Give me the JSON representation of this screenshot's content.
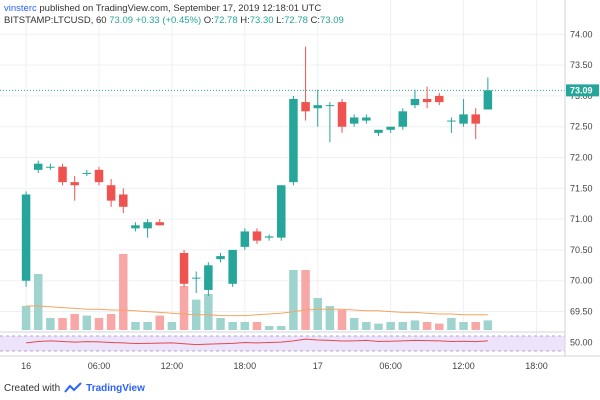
{
  "header": {
    "username": "vinsterc",
    "published_text": "published on TradingView.com, September 17, 2019 12:18:01 UTC",
    "symbol_label": "BITSTAMP:LTCUSD, 60",
    "last_value": "73.09",
    "change_text": "+0.33 (+0.45%)",
    "open_label": "O:",
    "open_value": "72.78",
    "high_label": "H:",
    "high_value": "73.30",
    "low_label": "L:",
    "low_value": "72.78",
    "close_label": "C:",
    "close_value": "73.09"
  },
  "footer": {
    "created_with": "Created with",
    "logo_text": "TradingView"
  },
  "colors": {
    "up": "#26a69a",
    "down": "#ef5350",
    "up_volume": "#9fd4ce",
    "down_volume": "#f7a8a6",
    "rsi_line": "#e24b4b",
    "rsi_band": "#ede3fb",
    "volume_ma": "#f4a460",
    "price_line": "#26a69a"
  },
  "chart_data": {
    "type": "candlestick",
    "last_price_label": "73.09",
    "price_ticks": [
      "74.00",
      "73.50",
      "73.00",
      "72.50",
      "72.00",
      "71.50",
      "71.00",
      "70.50",
      "70.00",
      "69.50"
    ],
    "price_ylim": [
      69.2,
      74.2
    ],
    "x_ticks": [
      {
        "label": "16",
        "index": 0
      },
      {
        "label": "06:00",
        "index": 6
      },
      {
        "label": "12:00",
        "index": 12
      },
      {
        "label": "18:00",
        "index": 18
      },
      {
        "label": "17",
        "index": 24
      },
      {
        "label": "06:00",
        "index": 30
      },
      {
        "label": "12:00",
        "index": 36
      },
      {
        "label": "18:00",
        "index": 42
      }
    ],
    "x_total_slots": 46,
    "candles": [
      {
        "o": 70.0,
        "h": 71.45,
        "l": 69.9,
        "c": 71.4
      },
      {
        "o": 71.8,
        "h": 71.95,
        "l": 71.75,
        "c": 71.9
      },
      {
        "o": 71.85,
        "h": 71.9,
        "l": 71.8,
        "c": 71.85
      },
      {
        "o": 71.85,
        "h": 71.9,
        "l": 71.55,
        "c": 71.6
      },
      {
        "o": 71.6,
        "h": 71.7,
        "l": 71.3,
        "c": 71.55
      },
      {
        "o": 71.75,
        "h": 71.8,
        "l": 71.7,
        "c": 71.75
      },
      {
        "o": 71.8,
        "h": 71.85,
        "l": 71.55,
        "c": 71.6
      },
      {
        "o": 71.55,
        "h": 71.65,
        "l": 71.2,
        "c": 71.3
      },
      {
        "o": 71.4,
        "h": 71.5,
        "l": 71.1,
        "c": 71.2
      },
      {
        "o": 70.85,
        "h": 70.95,
        "l": 70.8,
        "c": 70.9
      },
      {
        "o": 70.85,
        "h": 71.0,
        "l": 70.7,
        "c": 70.95
      },
      {
        "o": 70.95,
        "h": 71.0,
        "l": 70.9,
        "c": 70.9
      },
      null,
      {
        "o": 70.45,
        "h": 70.5,
        "l": 69.9,
        "c": 69.95
      },
      {
        "o": 70.05,
        "h": 70.15,
        "l": 69.8,
        "c": 70.05
      },
      {
        "o": 69.85,
        "h": 70.3,
        "l": 69.75,
        "c": 70.25
      },
      {
        "o": 70.35,
        "h": 70.45,
        "l": 70.3,
        "c": 70.4
      },
      {
        "o": 69.95,
        "h": 70.5,
        "l": 69.9,
        "c": 70.5
      },
      {
        "o": 70.55,
        "h": 70.85,
        "l": 70.5,
        "c": 70.8
      },
      {
        "o": 70.8,
        "h": 70.85,
        "l": 70.6,
        "c": 70.65
      },
      {
        "o": 70.7,
        "h": 70.75,
        "l": 70.65,
        "c": 70.72
      },
      {
        "o": 70.7,
        "h": 71.55,
        "l": 70.65,
        "c": 71.55
      },
      {
        "o": 71.6,
        "h": 73.0,
        "l": 71.55,
        "c": 72.95
      },
      {
        "o": 72.9,
        "h": 73.8,
        "l": 72.6,
        "c": 72.75
      },
      {
        "o": 72.8,
        "h": 73.1,
        "l": 72.5,
        "c": 72.85
      },
      {
        "o": 72.85,
        "h": 72.9,
        "l": 72.25,
        "c": 72.85
      },
      {
        "o": 72.9,
        "h": 72.95,
        "l": 72.4,
        "c": 72.5
      },
      {
        "o": 72.55,
        "h": 72.7,
        "l": 72.5,
        "c": 72.65
      },
      {
        "o": 72.6,
        "h": 72.7,
        "l": 72.55,
        "c": 72.65
      },
      {
        "o": 72.4,
        "h": 72.45,
        "l": 72.35,
        "c": 72.45
      },
      {
        "o": 72.45,
        "h": 72.5,
        "l": 72.4,
        "c": 72.5
      },
      {
        "o": 72.5,
        "h": 72.8,
        "l": 72.45,
        "c": 72.75
      },
      {
        "o": 72.85,
        "h": 73.1,
        "l": 72.8,
        "c": 72.95
      },
      {
        "o": 72.95,
        "h": 73.15,
        "l": 72.8,
        "c": 72.9
      },
      {
        "o": 73.0,
        "h": 73.05,
        "l": 72.85,
        "c": 72.9
      },
      {
        "o": 72.6,
        "h": 72.65,
        "l": 72.4,
        "c": 72.6
      },
      {
        "o": 72.55,
        "h": 72.95,
        "l": 72.5,
        "c": 72.7
      },
      {
        "o": 72.7,
        "h": 72.8,
        "l": 72.3,
        "c": 72.55
      },
      {
        "o": 72.78,
        "h": 73.3,
        "l": 72.78,
        "c": 73.09
      }
    ],
    "volume": [
      0.3,
      0.7,
      0.15,
      0.15,
      0.2,
      0.18,
      0.15,
      0.2,
      0.95,
      0.1,
      0.1,
      0.18,
      0.1,
      0.55,
      0.38,
      0.45,
      0.15,
      0.1,
      0.1,
      0.1,
      0.05,
      0.05,
      0.75,
      0.75,
      0.4,
      0.3,
      0.25,
      0.15,
      0.1,
      0.08,
      0.1,
      0.1,
      0.12,
      0.1,
      0.08,
      0.15,
      0.1,
      0.1,
      0.12
    ],
    "volume_ma": [
      0.3,
      0.3,
      0.29,
      0.28,
      0.27,
      0.26,
      0.26,
      0.25,
      0.25,
      0.24,
      0.23,
      0.22,
      0.21,
      0.2,
      0.19,
      0.19,
      0.18,
      0.18,
      0.18,
      0.19,
      0.2,
      0.21,
      0.23,
      0.25,
      0.26,
      0.26,
      0.26,
      0.25,
      0.24,
      0.24,
      0.23,
      0.22,
      0.22,
      0.21,
      0.2,
      0.2,
      0.19,
      0.19,
      0.19
    ],
    "rsi_label": "50.00",
    "rsi": [
      48,
      55,
      58,
      55,
      52,
      54,
      53,
      50,
      48,
      45,
      46,
      47,
      48,
      44,
      40,
      42,
      44,
      46,
      50,
      48,
      50,
      52,
      58,
      66,
      62,
      60,
      57,
      58,
      60,
      55,
      56,
      58,
      60,
      59,
      58,
      55,
      56,
      54,
      58
    ]
  }
}
